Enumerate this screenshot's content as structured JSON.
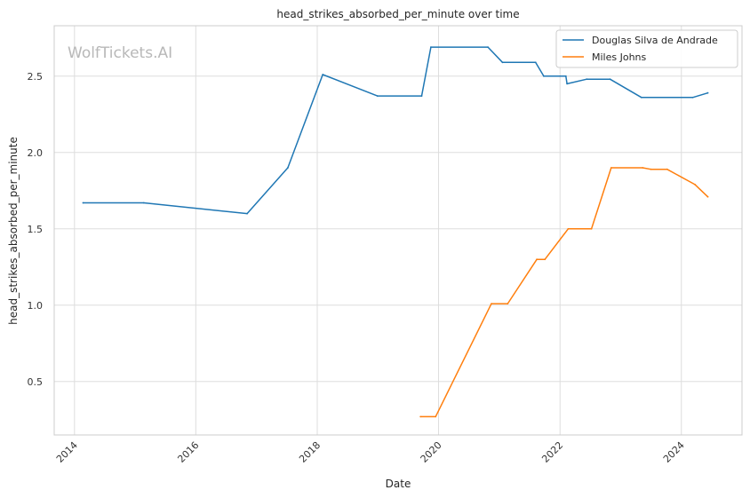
{
  "chart_data": {
    "type": "line",
    "title": "head_strikes_absorbed_per_minute over time",
    "xlabel": "Date",
    "ylabel": "head_strikes_absorbed_per_minute",
    "watermark": "WolfTickets.AI",
    "x_ticks": [
      "2014",
      "2016",
      "2018",
      "2020",
      "2022",
      "2024"
    ],
    "y_ticks": [
      "0.5",
      "1.0",
      "1.5",
      "2.0",
      "2.5"
    ],
    "xlim": [
      "2013-09-01",
      "2024-12-31"
    ],
    "ylim": [
      0.15,
      2.83
    ],
    "grid": true,
    "legend_position": "top-right",
    "series": [
      {
        "name": "Douglas Silva de Andrade",
        "color": "#1f77b4",
        "points": [
          [
            "2014-02-22",
            1.67
          ],
          [
            "2015-02-22",
            1.67
          ],
          [
            "2016-11-05",
            1.6
          ],
          [
            "2017-07-08",
            1.9
          ],
          [
            "2018-02-03",
            2.51
          ],
          [
            "2018-12-29",
            2.37
          ],
          [
            "2019-09-21",
            2.37
          ],
          [
            "2019-11-16",
            2.69
          ],
          [
            "2020-10-24",
            2.69
          ],
          [
            "2021-01-20",
            2.59
          ],
          [
            "2021-08-07",
            2.59
          ],
          [
            "2021-09-25",
            2.5
          ],
          [
            "2022-02-05",
            2.5
          ],
          [
            "2022-02-12",
            2.45
          ],
          [
            "2022-06-11",
            2.48
          ],
          [
            "2022-10-29",
            2.48
          ],
          [
            "2023-05-06",
            2.36
          ],
          [
            "2024-03-09",
            2.36
          ],
          [
            "2024-06-08",
            2.39
          ]
        ]
      },
      {
        "name": "Miles Johns",
        "color": "#ff7f0e",
        "points": [
          [
            "2019-09-14",
            0.27
          ],
          [
            "2019-12-14",
            0.27
          ],
          [
            "2020-11-14",
            1.01
          ],
          [
            "2021-02-20",
            1.01
          ],
          [
            "2021-08-14",
            1.3
          ],
          [
            "2021-10-02",
            1.3
          ],
          [
            "2022-02-19",
            1.5
          ],
          [
            "2022-07-09",
            1.5
          ],
          [
            "2022-11-05",
            1.9
          ],
          [
            "2023-05-13",
            1.9
          ],
          [
            "2023-07-01",
            1.89
          ],
          [
            "2023-10-07",
            1.89
          ],
          [
            "2024-03-23",
            1.79
          ],
          [
            "2024-06-08",
            1.71
          ]
        ]
      }
    ]
  }
}
